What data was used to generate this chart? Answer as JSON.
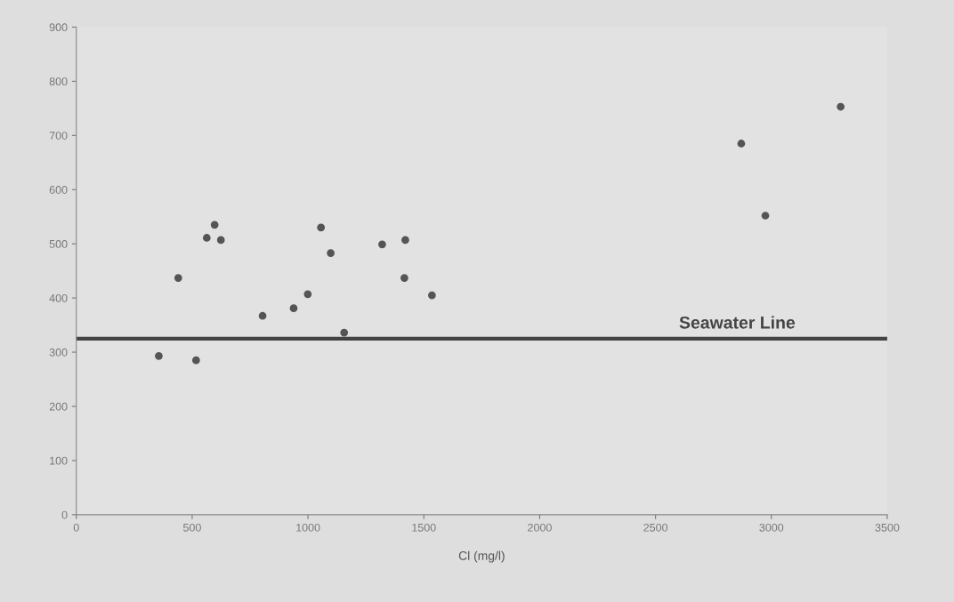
{
  "chart_data": {
    "type": "scatter",
    "xlabel": "Cl (mg/l)",
    "x": [
      356,
      517,
      440,
      597,
      563,
      624,
      804,
      938,
      999,
      1056,
      1098,
      1156,
      1320,
      1420,
      1416,
      1535,
      2870,
      2974,
      3299
    ],
    "series": [
      {
        "color": "#555555",
        "values": [
          293,
          285,
          437,
          535,
          511,
          507,
          367,
          381,
          407,
          530,
          483,
          336,
          499,
          507,
          437,
          405,
          685,
          552,
          753
        ]
      }
    ],
    "marker": "circle",
    "xlim": [
      0,
      3500
    ],
    "xticks": [
      0,
      500,
      1000,
      1500,
      2000,
      2500,
      3000,
      3500
    ],
    "ylim": [
      0,
      900
    ],
    "yticks": [
      0,
      100,
      200,
      300,
      400,
      500,
      600,
      700,
      800,
      900
    ],
    "ref_lines": [
      {
        "axis": "y",
        "value": 325,
        "label": "Seawater Line",
        "color": "#444444",
        "line_style": "solid"
      }
    ],
    "grid": false,
    "legend": false
  }
}
